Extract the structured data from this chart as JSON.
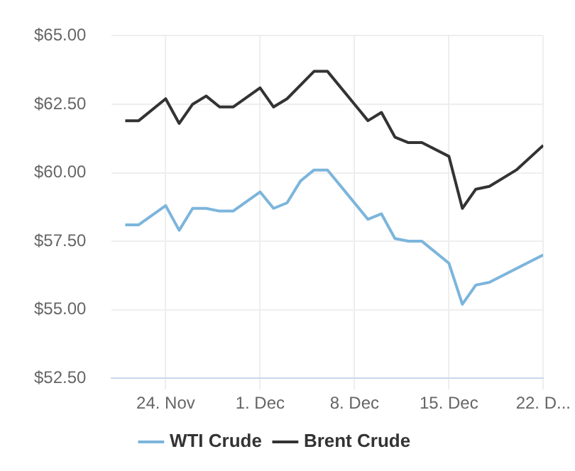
{
  "chart_data": {
    "type": "line",
    "xlim": [
      "--11-20",
      "--12-22"
    ],
    "xticks": [
      {
        "value": "--11-24",
        "label": "24. Nov"
      },
      {
        "value": "--12-01",
        "label": "1. Dec"
      },
      {
        "value": "--12-08",
        "label": "8. Dec"
      },
      {
        "value": "--12-15",
        "label": "15. Dec"
      },
      {
        "value": "--12-22",
        "label": "22. D..."
      }
    ],
    "ylim": [
      52.5,
      65
    ],
    "yticks": [
      {
        "value": 52.5,
        "label": "$52.50"
      },
      {
        "value": 55,
        "label": "$55.00"
      },
      {
        "value": 57.5,
        "label": "$57.50"
      },
      {
        "value": 60,
        "label": "$60.00"
      },
      {
        "value": 62.5,
        "label": "$62.50"
      },
      {
        "value": 65,
        "label": "$65.00"
      }
    ],
    "grid": true,
    "legend": "bottom",
    "marker": "none",
    "line_style": "solid",
    "series": [
      {
        "name": "WTI Crude",
        "color": "#7cb5dc",
        "x": [
          "--11-21",
          "--11-22",
          "--11-24",
          "--11-25",
          "--11-26",
          "--11-27",
          "--11-28",
          "--11-29",
          "--12-01",
          "--12-02",
          "--12-03",
          "--12-04",
          "--12-05",
          "--12-06",
          "--12-09",
          "--12-10",
          "--12-11",
          "--12-12",
          "--12-13",
          "--12-15",
          "--12-16",
          "--12-17",
          "--12-18",
          "--12-22"
        ],
        "values": [
          58.1,
          58.1,
          58.8,
          57.9,
          58.7,
          58.7,
          58.6,
          58.6,
          59.3,
          58.7,
          58.9,
          59.7,
          60.1,
          60.1,
          58.3,
          58.5,
          57.6,
          57.5,
          57.5,
          56.7,
          55.2,
          55.9,
          56.0,
          57.0
        ]
      },
      {
        "name": "Brent Crude",
        "color": "#333333",
        "x": [
          "--11-21",
          "--11-22",
          "--11-24",
          "--11-25",
          "--11-26",
          "--11-27",
          "--11-28",
          "--11-29",
          "--12-01",
          "--12-02",
          "--12-03",
          "--12-05",
          "--12-06",
          "--12-09",
          "--12-10",
          "--12-11",
          "--12-12",
          "--12-13",
          "--12-15",
          "--12-16",
          "--12-17",
          "--12-18",
          "--12-20",
          "--12-22"
        ],
        "values": [
          61.9,
          61.9,
          62.7,
          61.8,
          62.5,
          62.8,
          62.4,
          62.4,
          63.1,
          62.4,
          62.7,
          63.7,
          63.7,
          61.9,
          62.2,
          61.3,
          61.1,
          61.1,
          60.6,
          58.7,
          59.4,
          59.5,
          60.1,
          61.0
        ]
      }
    ]
  }
}
